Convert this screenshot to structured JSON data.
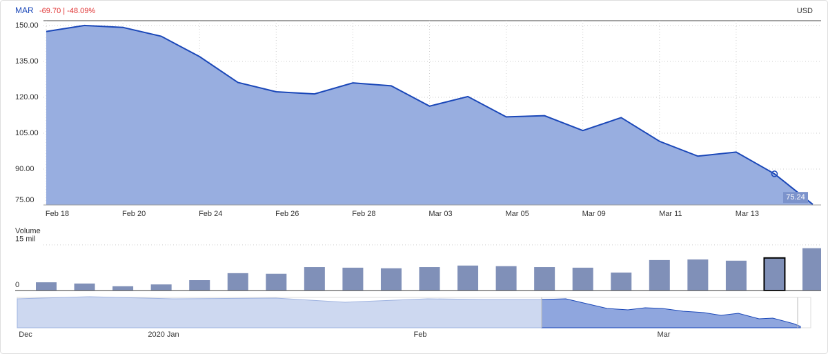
{
  "header": {
    "symbol": "MAR",
    "change": "-69.70 | -48.09%",
    "currency": "USD"
  },
  "chart_data": [
    {
      "type": "area",
      "color": "#1a47b8",
      "fill": "#98aee0",
      "categories": [
        "Feb 18",
        null,
        "Feb 20",
        null,
        "Feb 24",
        null,
        "Feb 26",
        null,
        "Feb 28",
        null,
        "Mar 03",
        null,
        "Mar 05",
        null,
        "Mar 09",
        null,
        "Mar 11",
        null,
        "Mar 13",
        null,
        null
      ],
      "values": [
        147.5,
        150.0,
        149.2,
        145.5,
        137.0,
        126.2,
        122.3,
        121.4,
        126.0,
        124.8,
        116.3,
        120.3,
        111.8,
        112.3,
        106.1,
        111.5,
        101.6,
        95.4,
        97.1,
        88.0,
        75.24
      ],
      "ylim": [
        75,
        152
      ],
      "yticks": [
        {
          "value": 150,
          "label": "150.00"
        },
        {
          "value": 135,
          "label": "135.00"
        },
        {
          "value": 120,
          "label": "120.00"
        },
        {
          "value": 105,
          "label": "105.00"
        },
        {
          "value": 90,
          "label": "90.00"
        },
        {
          "value": 75,
          "label": "75.00"
        }
      ],
      "grid": true
    },
    {
      "type": "bar",
      "title": "Volume",
      "color": "#8090b8",
      "values": [
        2.7,
        2.3,
        1.4,
        2.0,
        3.4,
        5.7,
        5.5,
        7.7,
        7.5,
        7.3,
        7.7,
        8.2,
        8.0,
        7.7,
        7.5,
        5.9,
        10.0,
        10.2,
        9.8,
        10.7,
        13.9
      ],
      "ylim": [
        0,
        17
      ],
      "yticks": [
        {
          "value": 15,
          "label": "15 mil"
        },
        0
      ],
      "grid": true
    }
  ],
  "navigator": {
    "labels": [
      "Dec",
      "2020 Jan",
      "Feb",
      "Mar"
    ]
  }
}
